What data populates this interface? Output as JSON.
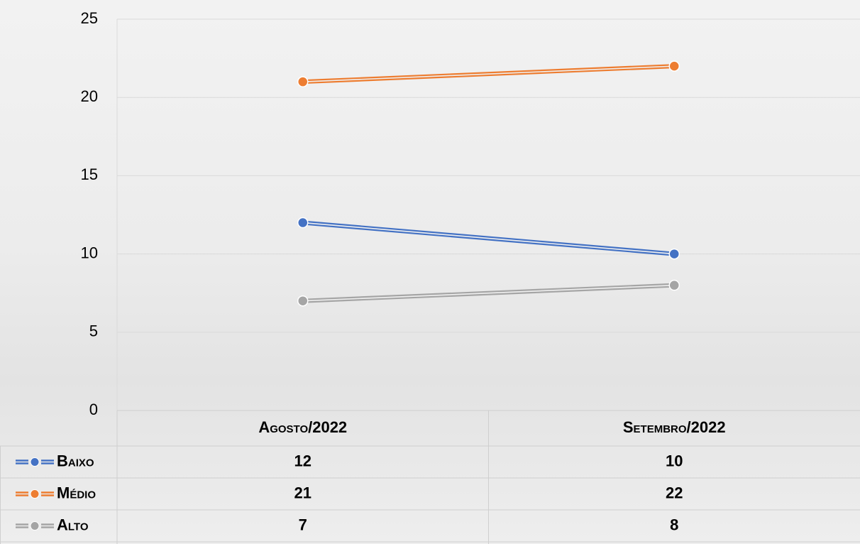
{
  "chart_data": {
    "type": "line",
    "categories": [
      "Agosto/2022",
      "Setembro/2022"
    ],
    "series": [
      {
        "name": "Baixo",
        "color": "#4472c4",
        "values": [
          12,
          10
        ]
      },
      {
        "name": "Médio",
        "color": "#ed7d31",
        "values": [
          21,
          22
        ]
      },
      {
        "name": "Alto",
        "color": "#a5a5a5",
        "values": [
          7,
          8
        ]
      }
    ],
    "ylim": [
      0,
      25
    ],
    "yticks": [
      0,
      5,
      10,
      15,
      20,
      25
    ],
    "grid": true
  }
}
